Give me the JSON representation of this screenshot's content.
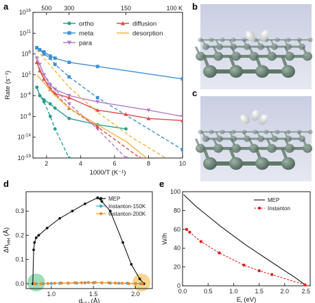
{
  "panels": {
    "a": "a",
    "b": "b",
    "c": "c",
    "d": "d",
    "e": "e"
  },
  "colors": {
    "ortho": "#2a9d8f",
    "meta": "#3d8fd6",
    "para": "#b07cc6",
    "diffusion": "#e04848",
    "desorption": "#f2b33d",
    "mep": "#111111",
    "inst150": "#4aa3c8",
    "inst200": "#f08a24",
    "instanton_e": "#e02020"
  },
  "chart_data": [
    {
      "id": "a",
      "type": "line",
      "xlabel": "1000/T (K⁻¹)",
      "ylabel": "Rate (s⁻¹)",
      "xlim": [
        1.2,
        10
      ],
      "ylim_log10": [
        -19,
        16
      ],
      "x_ticks": [
        2,
        4,
        6,
        8,
        10
      ],
      "y_ticks_log10": [
        -19,
        -14,
        -9,
        -4,
        1,
        6,
        11,
        16
      ],
      "top_ticks": [
        "500",
        "300",
        "150",
        "100 K"
      ],
      "top_ticks_x": [
        2,
        3.33,
        6.67,
        10
      ],
      "legend": [
        "ortho",
        "meta",
        "para",
        "diffusion",
        "desorption"
      ],
      "series": [
        {
          "name": "ortho",
          "color_key": "ortho",
          "marker": "circle",
          "style": "solid",
          "x": [
            1.43,
            1.6,
            1.85,
            2.22,
            2.5,
            3.33,
            5.0,
            6.67
          ],
          "y_log10": [
            -2.0,
            -4.0,
            -5.0,
            -6.0,
            -7.0,
            -9.5,
            -11.0,
            -12.0
          ]
        },
        {
          "name": "ortho",
          "color_key": "ortho",
          "marker": "circle",
          "style": "dashed",
          "x": [
            1.43,
            1.6,
            1.85,
            2.22,
            2.5,
            3.33
          ],
          "y_log10": [
            -2.0,
            -4.0,
            -5.5,
            -9.0,
            -12.0,
            -19.0
          ]
        },
        {
          "name": "meta",
          "color_key": "meta",
          "marker": "square",
          "style": "solid",
          "x": [
            1.43,
            1.6,
            1.85,
            2.22,
            2.5,
            3.33,
            5.0,
            10.0
          ],
          "y_log10": [
            7.5,
            7.0,
            6.5,
            5.5,
            5.0,
            4.0,
            3.0,
            0.0
          ]
        },
        {
          "name": "meta",
          "color_key": "meta",
          "marker": "square",
          "style": "dashed",
          "x": [
            1.43,
            1.6,
            1.85,
            2.22,
            2.5,
            3.33,
            5.0,
            10.0
          ],
          "y_log10": [
            7.5,
            7.0,
            6.0,
            5.0,
            3.5,
            0.5,
            -4.5,
            -17.0
          ]
        },
        {
          "name": "para",
          "color_key": "para",
          "marker": "triangle-down",
          "style": "solid",
          "x": [
            1.43,
            1.6,
            1.85,
            2.22,
            2.5,
            3.33,
            5.0,
            8.0,
            10.0
          ],
          "y_log10": [
            5.0,
            3.5,
            1.0,
            -1.5,
            -2.5,
            -4.0,
            -5.5,
            -7.5,
            -9.0
          ]
        },
        {
          "name": "para",
          "color_key": "para",
          "marker": "triangle-down",
          "style": "dashed",
          "x": [
            1.43,
            1.85,
            2.5,
            3.33,
            5.0,
            6.67
          ],
          "y_log10": [
            5.0,
            1.0,
            -2.5,
            -6.0,
            -12.0,
            -19.0
          ]
        },
        {
          "name": "diffusion",
          "color_key": "diffusion",
          "marker": "triangle-up",
          "style": "solid",
          "x": [
            1.43,
            1.6,
            1.85,
            2.22,
            2.5,
            3.33,
            5.0,
            6.67,
            8.0,
            10.0
          ],
          "y_log10": [
            4.0,
            2.0,
            0.0,
            -2.5,
            -3.5,
            -4.5,
            -7.5,
            -8.5,
            -9.5,
            -10.0
          ]
        },
        {
          "name": "diffusion",
          "color_key": "diffusion",
          "marker": "triangle-up",
          "style": "dashed",
          "x": [
            1.43,
            1.85,
            2.5,
            3.33,
            5.0,
            7.5
          ],
          "y_log10": [
            4.0,
            0.0,
            -3.5,
            -7.0,
            -11.5,
            -19.0
          ]
        },
        {
          "name": "desorption",
          "color_key": "desorption",
          "marker": "none",
          "style": "solid",
          "x": [
            1.43,
            2.5,
            3.33,
            5.0,
            6.67,
            7.9
          ],
          "y_log10": [
            1.0,
            -4.0,
            -7.0,
            -11.0,
            -15.0,
            -19.0
          ]
        },
        {
          "name": "desorption",
          "color_key": "desorption",
          "marker": "none",
          "style": "dashed",
          "x": [
            1.43,
            3.33,
            5.0,
            7.0,
            9.0
          ],
          "y_log10": [
            7.0,
            -2.0,
            -8.0,
            -14.0,
            -19.0
          ]
        }
      ]
    },
    {
      "id": "d",
      "type": "line",
      "xlabel": "d",
      "xlabel_sub": "HH",
      "xlabel_unit": " (Å)",
      "ylabel": "Δh",
      "ylabel_sub": "HH",
      "ylabel_unit": " (Å)",
      "xlim": [
        0.7,
        2.2
      ],
      "ylim": [
        -0.02,
        0.38
      ],
      "x_ticks": [
        1.0,
        1.5,
        2.0
      ],
      "x_tick_labels": [
        "1.0",
        "1.5",
        "2.0"
      ],
      "y_ticks": [
        0.0,
        0.1,
        0.2,
        0.3
      ],
      "y_tick_labels": [
        "0.0",
        "0.1",
        "0.2",
        "0.3"
      ],
      "legend": [
        "MEP",
        "Instanton-150K",
        "Instanton-200K"
      ],
      "series": [
        {
          "name": "MEP",
          "color_key": "mep",
          "marker": "circle",
          "x": [
            0.78,
            0.79,
            0.8,
            0.82,
            0.85,
            0.95,
            1.1,
            1.25,
            1.4,
            1.55,
            1.6,
            1.7,
            1.85,
            1.95,
            2.05,
            2.1
          ],
          "y": [
            0.0,
            0.14,
            0.17,
            0.19,
            0.2,
            0.23,
            0.27,
            0.3,
            0.33,
            0.355,
            0.34,
            0.3,
            0.17,
            0.08,
            0.02,
            0.0
          ]
        },
        {
          "name": "Instanton-150K",
          "color_key": "inst150",
          "marker": "circle",
          "x": [
            0.82,
            0.9,
            1.0,
            1.1,
            1.2,
            1.3,
            1.4,
            1.5,
            1.6,
            1.7,
            1.8,
            1.9,
            2.0,
            2.06
          ],
          "y": [
            0.0,
            0.0,
            0.001,
            0.002,
            0.002,
            0.003,
            0.004,
            0.004,
            0.004,
            0.003,
            0.002,
            0.002,
            0.001,
            0.0
          ]
        },
        {
          "name": "Instanton-200K",
          "color_key": "inst200",
          "marker": "circle",
          "x": [
            0.8,
            0.88,
            0.96,
            1.04,
            1.12,
            1.2,
            1.28,
            1.36,
            1.44,
            1.52,
            1.6,
            1.68,
            1.76,
            1.84,
            1.92,
            2.0,
            2.08
          ],
          "y": [
            0.0,
            0.0,
            0.001,
            0.002,
            0.003,
            0.003,
            0.004,
            0.004,
            0.005,
            0.005,
            0.004,
            0.004,
            0.003,
            0.002,
            0.001,
            0.0,
            0.0
          ]
        }
      ]
    },
    {
      "id": "e",
      "type": "line",
      "xlabel": "E",
      "xlabel_sub": "i",
      "xlabel_unit": " (eV)",
      "ylabel": "W/h",
      "xlim": [
        0,
        2.5
      ],
      "ylim": [
        0,
        100
      ],
      "x_ticks": [
        0.0,
        0.5,
        1.0,
        1.5,
        2.0,
        2.5
      ],
      "x_tick_labels": [
        "0.0",
        "0.5",
        "1.0",
        "1.5",
        "2.0",
        "2.5"
      ],
      "y_ticks": [
        0,
        20,
        40,
        60,
        80,
        100
      ],
      "y_tick_labels": [
        "0",
        "20",
        "40",
        "60",
        "80",
        "100"
      ],
      "legend": [
        "MEP",
        "Instanton"
      ],
      "series": [
        {
          "name": "MEP",
          "color_key": "mep",
          "marker": "none",
          "style": "solid",
          "x": [
            0.02,
            0.25,
            0.5,
            0.75,
            1.0,
            1.25,
            1.5,
            1.75,
            2.0,
            2.2,
            2.4
          ],
          "y": [
            97,
            85,
            74,
            63,
            53,
            43,
            34,
            25,
            16,
            9,
            1
          ]
        },
        {
          "name": "Instanton",
          "color_key": "instanton_e",
          "marker": "circle",
          "style": "dashed",
          "x": [
            0.08,
            0.14,
            0.36,
            0.72,
            1.2,
            1.5,
            1.75,
            2.4
          ],
          "y": [
            60,
            57,
            47,
            35,
            22,
            16,
            12,
            1
          ]
        }
      ]
    }
  ]
}
